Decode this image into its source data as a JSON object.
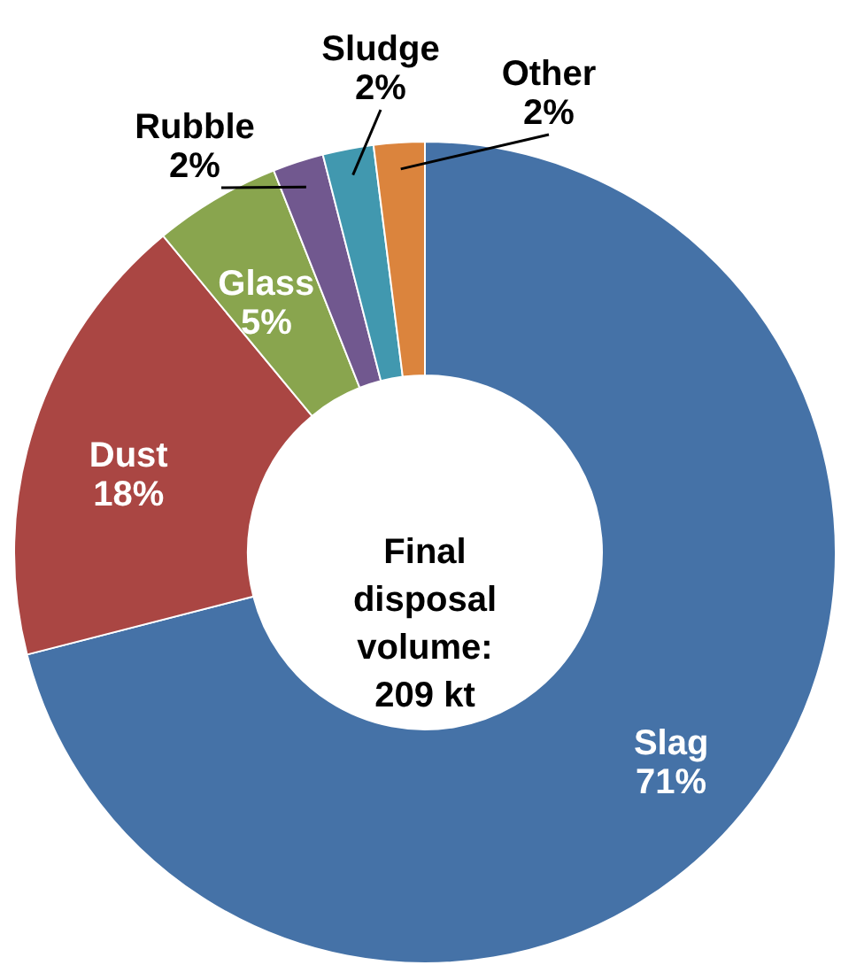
{
  "chart_data": {
    "type": "donut",
    "categories": [
      "Slag",
      "Dust",
      "Glass",
      "Rubble",
      "Sludge",
      "Other"
    ],
    "values": [
      71,
      18,
      5,
      2,
      2,
      2
    ],
    "colors": [
      "#4572a7",
      "#aa4643",
      "#89a54e",
      "#71588f",
      "#4198af",
      "#db843d"
    ],
    "value_labels": [
      "71%",
      "18%",
      "5%",
      "2%",
      "2%",
      "2%"
    ],
    "annotations": [
      "Final\ndisposal\nvolume:\n209 kt"
    ]
  }
}
